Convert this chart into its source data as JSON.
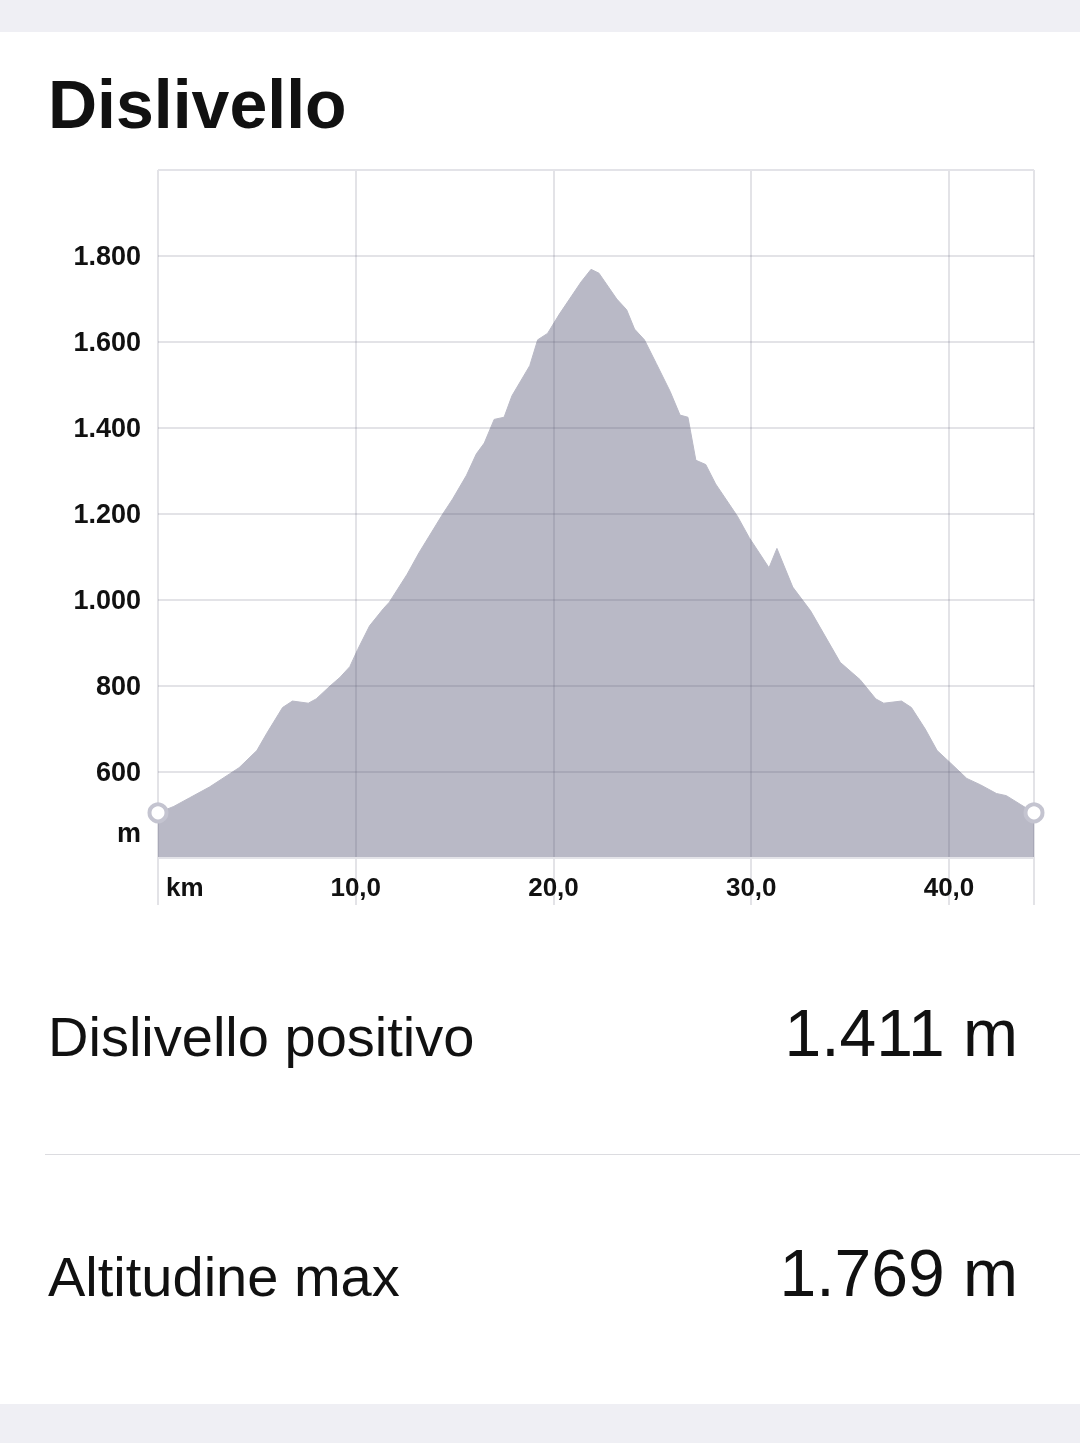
{
  "chart_data": {
    "type": "area",
    "title": "Dislivello",
    "xlabel": "km",
    "ylabel": "m",
    "x": [
      0,
      0.8,
      1.6,
      2.6,
      3.6,
      4.1,
      5.0,
      5.5,
      6.3,
      6.8,
      7.6,
      8.0,
      8.7,
      9.2,
      9.7,
      10.1,
      10.7,
      11.4,
      11.7,
      12.6,
      13.2,
      14.4,
      14.9,
      15.6,
      16.1,
      16.5,
      17.0,
      17.5,
      17.9,
      18.8,
      19.2,
      19.7,
      20.3,
      21.4,
      21.9,
      22.3,
      23.2,
      23.7,
      24.1,
      24.6,
      25.2,
      25.9,
      26.4,
      26.8,
      27.2,
      27.7,
      28.2,
      29.3,
      29.9,
      30.9,
      31.3,
      32.1,
      33.0,
      34.5,
      35.0,
      35.5,
      36.3,
      36.7,
      37.6,
      38.1,
      38.8,
      39.4,
      40.1,
      40.9,
      41.6,
      42.4,
      42.9,
      43.6,
      44.3
    ],
    "series": [
      {
        "color": "#b9b9c6",
        "values": [
          505,
          520,
          540,
          565,
          595,
          610,
          650,
          690,
          750,
          765,
          760,
          770,
          800,
          820,
          845,
          885,
          940,
          980,
          995,
          1060,
          1110,
          1200,
          1235,
          1290,
          1340,
          1365,
          1420,
          1425,
          1475,
          1545,
          1605,
          1620,
          1665,
          1740,
          1769,
          1760,
          1700,
          1675,
          1630,
          1605,
          1550,
          1485,
          1430,
          1425,
          1325,
          1315,
          1270,
          1195,
          1145,
          1075,
          1120,
          1030,
          975,
          855,
          835,
          815,
          770,
          760,
          765,
          750,
          700,
          650,
          620,
          585,
          570,
          550,
          545,
          525,
          505
        ]
      },
      {
        "type": "scatter",
        "color": "#c4c4d0",
        "marker": "circle",
        "x": [
          0,
          44.3
        ],
        "values": [
          505,
          505
        ]
      }
    ],
    "xlim": [
      0,
      44.3
    ],
    "xticks": [
      {
        "value": 0,
        "label": null
      },
      {
        "value": 10,
        "label": "10,0"
      },
      {
        "value": 20,
        "label": "20,0"
      },
      {
        "value": 30,
        "label": "30,0"
      },
      {
        "value": 40,
        "label": "40,0"
      },
      {
        "value": 44.3,
        "label": null
      }
    ],
    "ylim": [
      400,
      2000
    ],
    "yticks": [
      600,
      800,
      {
        "value": 1000,
        "label": "1.000"
      },
      {
        "value": 1200,
        "label": "1.200"
      },
      {
        "value": 1400,
        "label": "1.400"
      },
      {
        "value": 1600,
        "label": "1.600"
      },
      {
        "value": 1800,
        "label": "1.800"
      }
    ],
    "grid": true,
    "annotations": [
      "Dislivello positivo",
      "1.411 m",
      "Altitudine max",
      "1.769 m"
    ]
  }
}
